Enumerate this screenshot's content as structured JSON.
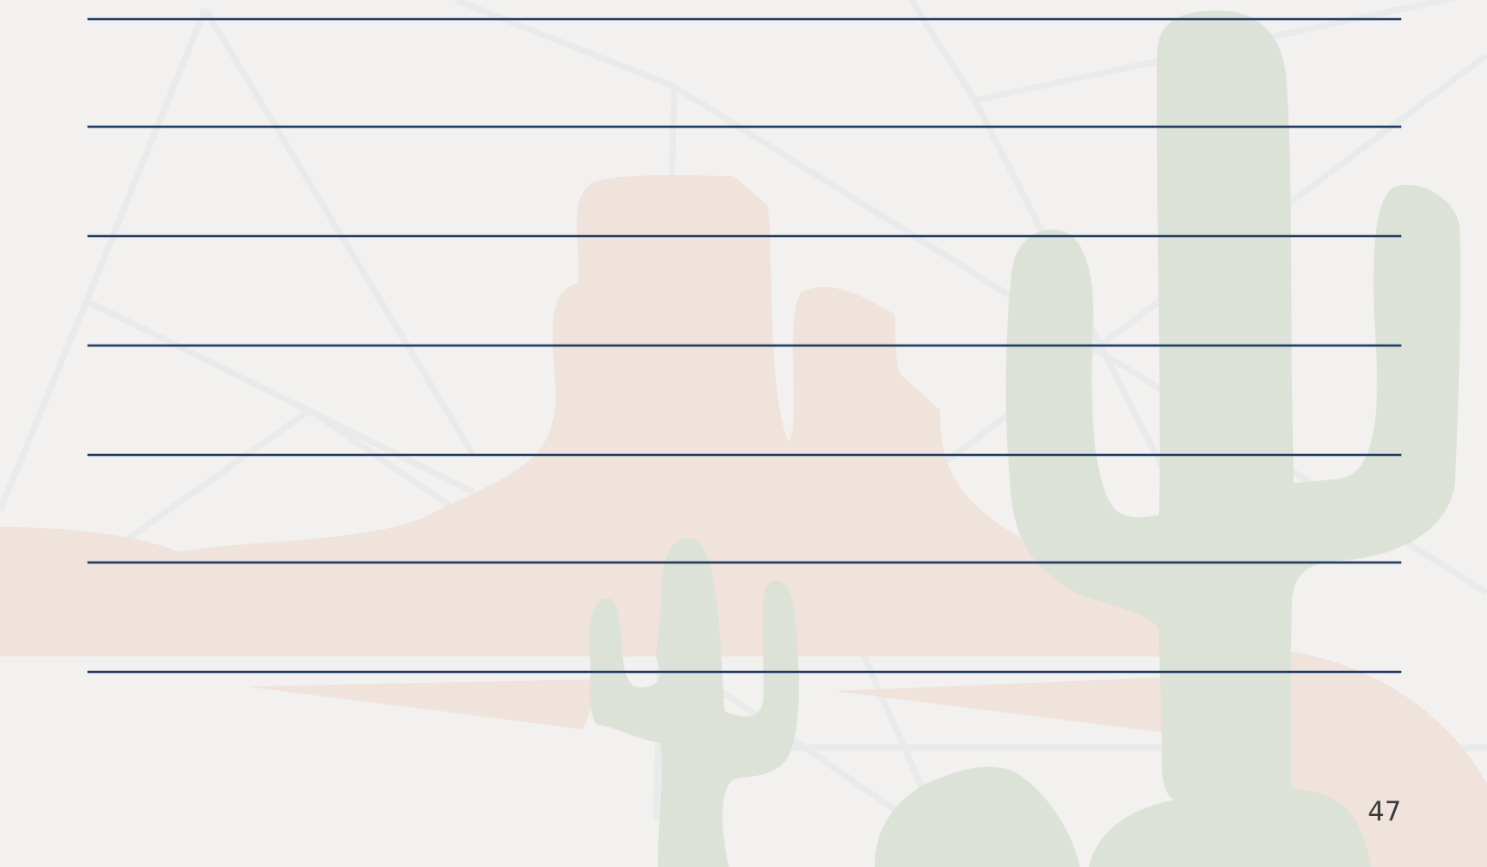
{
  "page_number": "47"
}
